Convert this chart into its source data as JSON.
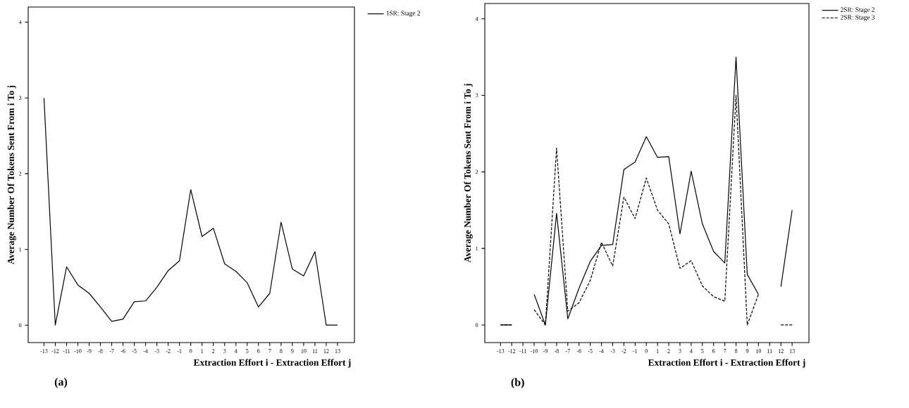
{
  "chart_data": [
    {
      "type": "line",
      "xlabel": "Extraction Effort i - Extraction Effort j",
      "ylabel": "Average Number Of Tokens Sent From i To j",
      "categories": [
        "-13",
        "-12",
        "-11",
        "-10",
        "-9",
        "-8",
        "-7",
        "-6",
        "-5",
        "-4",
        "-3",
        "-2",
        "-1",
        "0",
        "1",
        "2",
        "3",
        "4",
        "5",
        "6",
        "7",
        "8",
        "9",
        "10",
        "11",
        "12",
        "13"
      ],
      "series": [
        {
          "name": "1SR: Stage 2",
          "color": "#000000",
          "line_style": "solid",
          "values": [
            3.0,
            0,
            0.77,
            0.53,
            0.42,
            0.24,
            0.05,
            0.08,
            0.31,
            0.32,
            0.5,
            0.72,
            0.85,
            1.79,
            1.17,
            1.28,
            0.81,
            0.71,
            0.56,
            0.24,
            0.42,
            1.36,
            0.74,
            0.65,
            0.97,
            0,
            0
          ]
        }
      ],
      "ylim": [
        -0.23,
        4.2
      ],
      "yticks": [
        0,
        1,
        2,
        3,
        4
      ],
      "grid": false,
      "legend": "top right",
      "marker": "none",
      "annotations": [
        "(a)"
      ]
    },
    {
      "type": "line",
      "xlabel": "Extraction Effort i - Extraction Effort j",
      "ylabel": "Average Number Of Tokens Sent From i To j",
      "categories": [
        "-13",
        "-12",
        "-11",
        "-10",
        "-9",
        "-8",
        "-7",
        "-6",
        "-5",
        "-4",
        "-3",
        "-2",
        "-1",
        "0",
        "1",
        "2",
        "3",
        "4",
        "5",
        "6",
        "7",
        "8",
        "9",
        "10",
        "11",
        "12",
        "13"
      ],
      "series": [
        {
          "name": "2SR: Stage 2",
          "color": "#000000",
          "line_style": "solid",
          "values": [
            0,
            0,
            null,
            0.4,
            0,
            1.46,
            0.08,
            0.48,
            0.83,
            1.04,
            1.05,
            2.03,
            2.13,
            2.46,
            2.19,
            2.2,
            1.19,
            2.01,
            1.32,
            0.96,
            0.81,
            3.5,
            0.66,
            0.4,
            null,
            0.5,
            1.5
          ]
        },
        {
          "name": "2SR: Stage 3",
          "color": "#000000",
          "line_style": "dashed",
          "values": [
            0,
            0,
            null,
            0.2,
            0,
            2.31,
            0.18,
            0.29,
            0.58,
            1.08,
            0.77,
            1.67,
            1.39,
            1.92,
            1.5,
            1.32,
            0.74,
            0.84,
            0.51,
            0.37,
            0.31,
            3.0,
            0,
            0.4,
            null,
            0,
            0
          ]
        }
      ],
      "ylim": [
        -0.23,
        4.2
      ],
      "yticks": [
        0,
        1,
        2,
        3,
        4
      ],
      "grid": false,
      "legend": "top right",
      "marker": "none",
      "annotations": [
        "(b)"
      ]
    }
  ]
}
